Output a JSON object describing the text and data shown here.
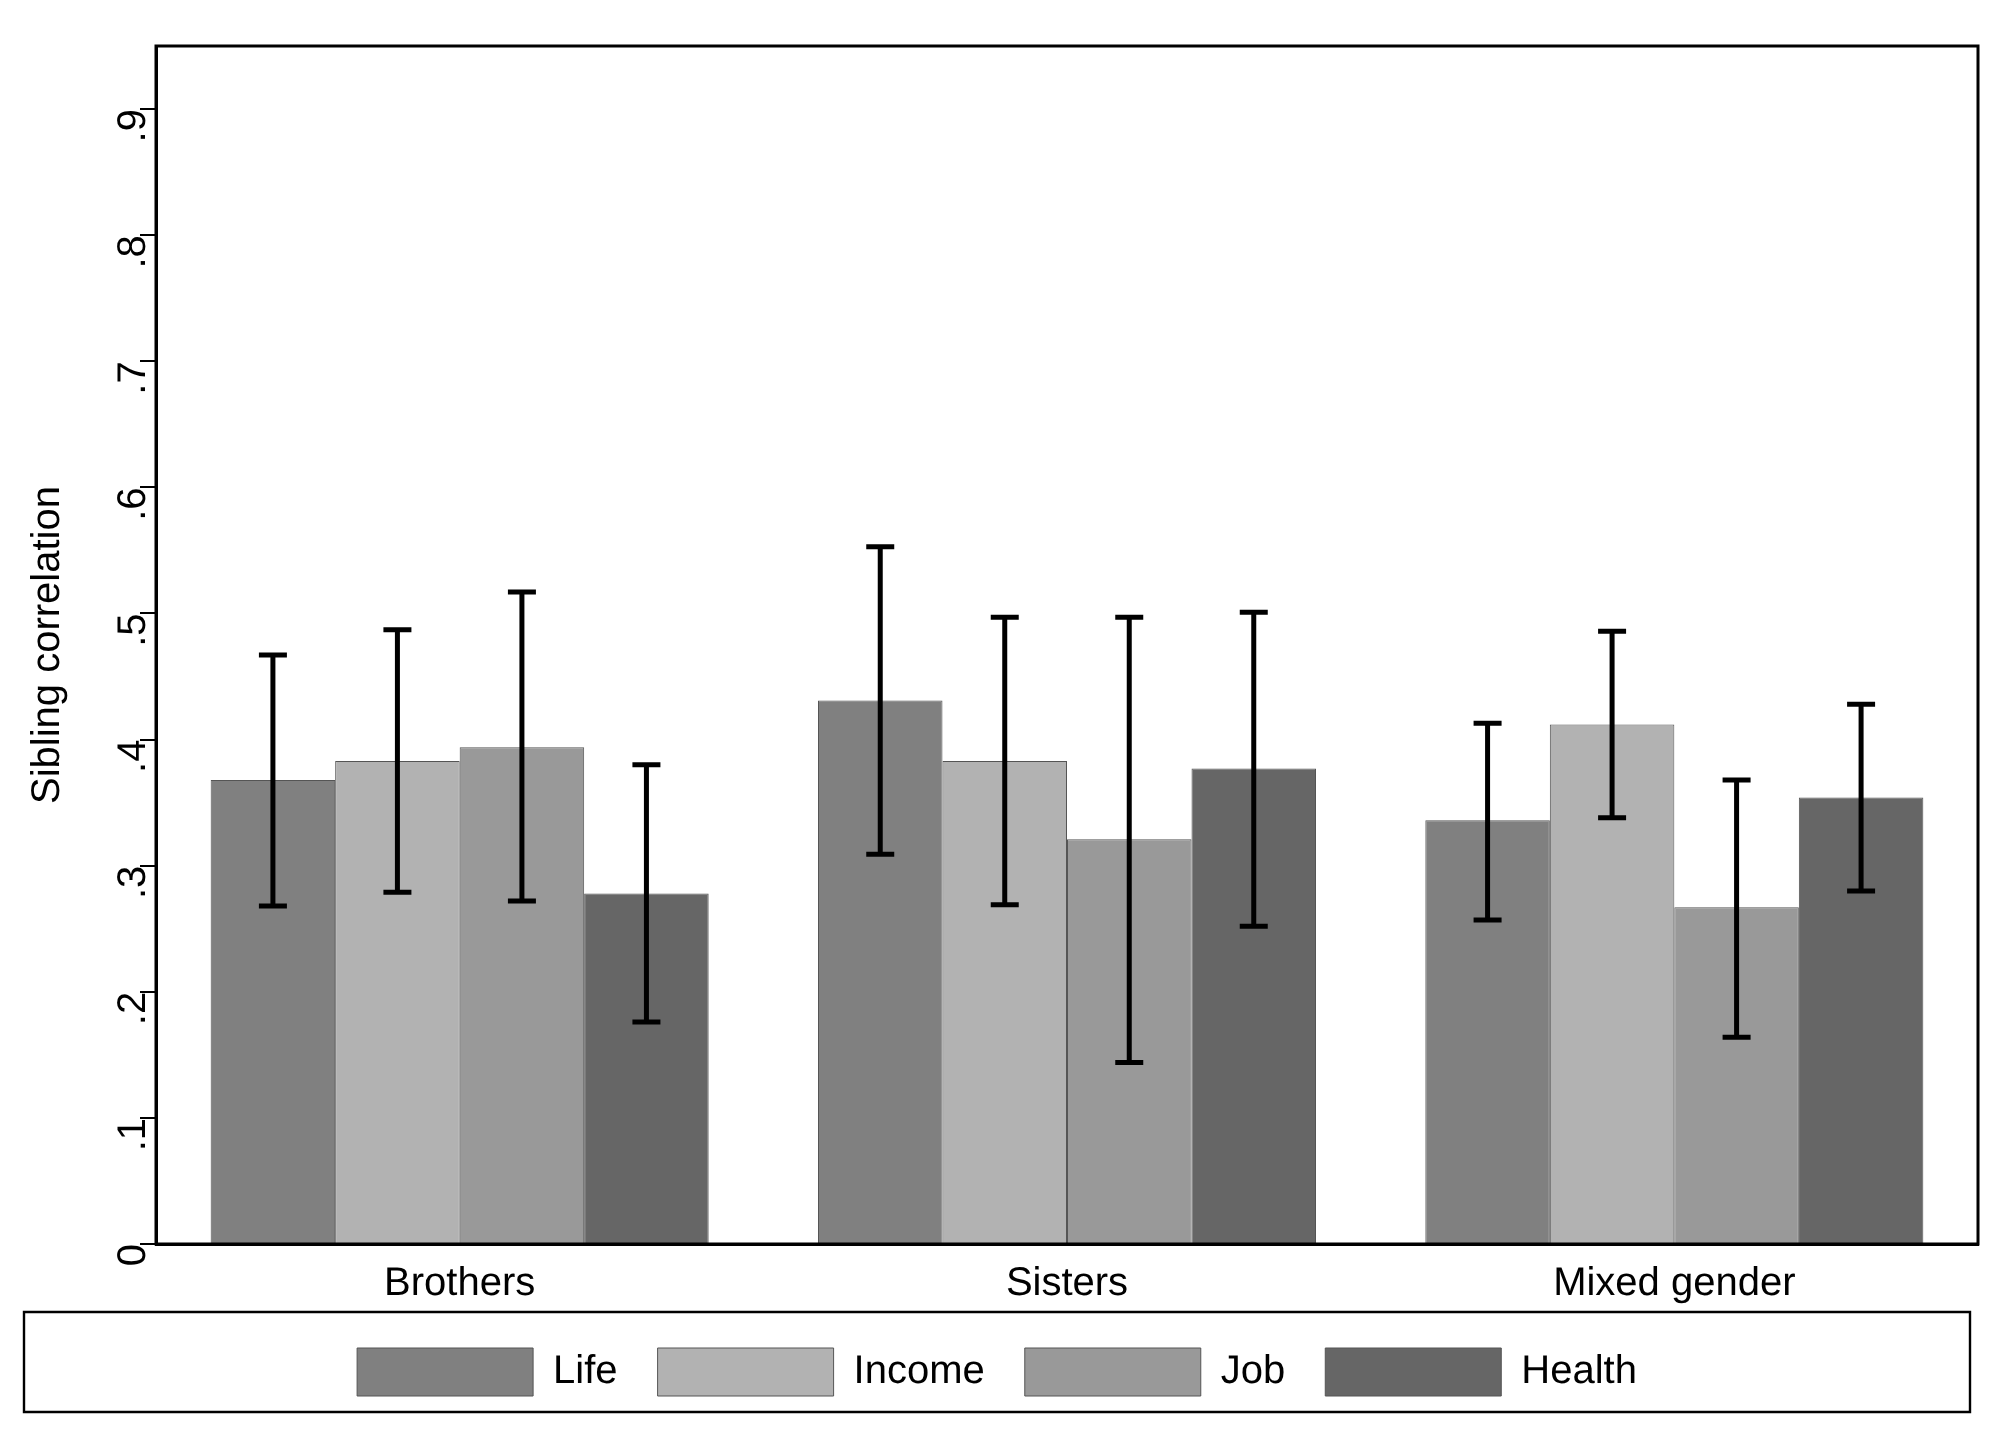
{
  "chart_data": {
    "type": "bar",
    "ylabel": "Sibling correlation",
    "categories": [
      "Brothers",
      "Sisters",
      "Mixed gender"
    ],
    "series": [
      {
        "name": "Life",
        "color": "#808080",
        "values": [
          0.368,
          0.431,
          0.336
        ],
        "errors": [
          [
            0.268,
            0.467
          ],
          [
            0.309,
            0.553
          ],
          [
            0.257,
            0.413
          ]
        ]
      },
      {
        "name": "Income",
        "color": "#b2b2b2",
        "values": [
          0.383,
          0.383,
          0.412
        ],
        "errors": [
          [
            0.279,
            0.487
          ],
          [
            0.269,
            0.497
          ],
          [
            0.338,
            0.486
          ]
        ]
      },
      {
        "name": "Job",
        "color": "#999999",
        "values": [
          0.394,
          0.321,
          0.267
        ],
        "errors": [
          [
            0.272,
            0.517
          ],
          [
            0.144,
            0.497
          ],
          [
            0.164,
            0.368
          ]
        ]
      },
      {
        "name": "Health",
        "color": "#666666",
        "values": [
          0.278,
          0.377,
          0.354
        ],
        "errors": [
          [
            0.176,
            0.38
          ],
          [
            0.252,
            0.501
          ],
          [
            0.28,
            0.428
          ]
        ]
      }
    ],
    "ylim": [
      0,
      0.95
    ],
    "yticks": [
      0,
      {
        "value": 0.1,
        "label": ".1"
      },
      {
        "value": 0.2,
        "label": ".2"
      },
      {
        "value": 0.3,
        "label": ".3"
      },
      {
        "value": 0.4,
        "label": ".4"
      },
      {
        "value": 0.5,
        "label": ".5"
      },
      {
        "value": 0.6,
        "label": ".6"
      },
      {
        "value": 0.7,
        "label": ".7"
      },
      {
        "value": 0.8,
        "label": ".8"
      },
      {
        "value": 0.9,
        "label": ".9"
      }
    ],
    "grid": false,
    "legend": "bottom"
  }
}
